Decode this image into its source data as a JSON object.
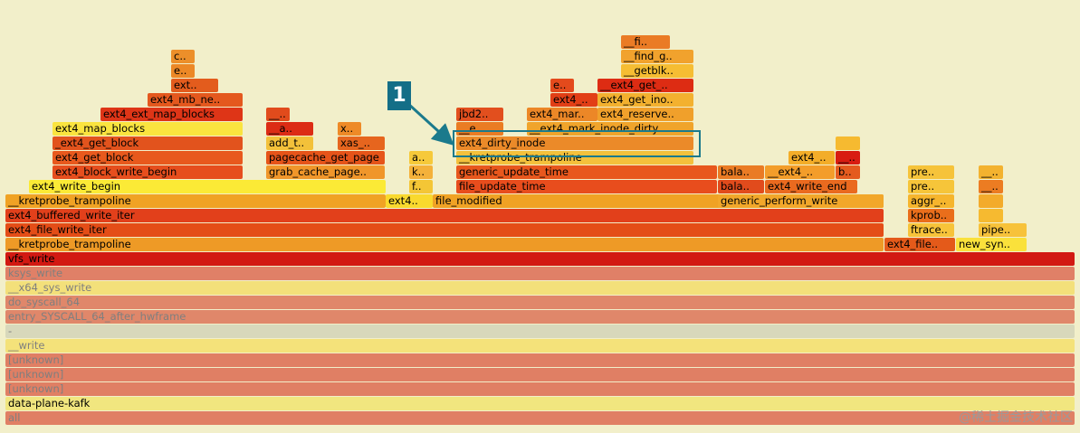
{
  "frames": [
    {
      "label": "all",
      "c": "#e07f64",
      "d": 1
    },
    {
      "label": "data-plane-kafk",
      "c": "#f1e67f"
    },
    {
      "label": "[unknown]",
      "c": "#e07f64",
      "d": 1
    },
    {
      "label": "[unknown]",
      "c": "#e07f64",
      "d": 1
    },
    {
      "label": "[unknown]",
      "c": "#e07f64",
      "d": 1
    },
    {
      "label": "__write",
      "c": "#f4e27a",
      "d": 1
    },
    {
      "label": "-",
      "c": "#d8d8bb",
      "d": 1
    },
    {
      "label": "entry_SYSCALL_64_after_hwframe",
      "c": "#e0876a",
      "d": 1
    },
    {
      "label": "do_syscall_64",
      "c": "#e0876a",
      "d": 1
    },
    {
      "label": "__x64_sys_write",
      "c": "#f3e07a",
      "d": 1
    },
    {
      "label": "ksys_write",
      "c": "#e08067",
      "d": 1
    },
    {
      "label": "vfs_write",
      "c": "#d21912"
    },
    {
      "label": "__kretprobe_trampoline",
      "c": "#ee9a26"
    },
    {
      "label": "ext4_file..",
      "c": "#e45a1a"
    },
    {
      "label": "new_syn..",
      "c": "#fae13b"
    },
    {
      "label": "ext4_file_write_iter",
      "c": "#e44d17"
    },
    {
      "label": "ftrace..",
      "c": "#f7c33a"
    },
    {
      "label": "pipe..",
      "c": "#f7c23a"
    },
    {
      "label": "ext4_buffered_write_iter",
      "c": "#e2401b"
    },
    {
      "label": "kprob..",
      "c": "#ea6e1b"
    },
    {
      "label": "",
      "c": "#f6ba30"
    },
    {
      "label": "__kretprobe_trampoline",
      "c": "#f0a224"
    },
    {
      "label": "ext4..",
      "c": "#f9d92e"
    },
    {
      "label": "file_modified",
      "c": "#f0a224"
    },
    {
      "label": "generic_perform_write",
      "c": "#f2a72a"
    },
    {
      "label": "aggr_..",
      "c": "#f6b52d"
    },
    {
      "label": "",
      "c": "#f3ab2b"
    },
    {
      "label": "ext4_write_begin",
      "c": "#fbea36"
    },
    {
      "label": "f..",
      "c": "#f4c636"
    },
    {
      "label": "file_update_time",
      "c": "#e84d1d"
    },
    {
      "label": "bala..",
      "c": "#e14b1c"
    },
    {
      "label": "ext4_write_end",
      "c": "#ea6a1f"
    },
    {
      "label": "pre..",
      "c": "#f6c53a"
    },
    {
      "label": "__..",
      "c": "#ec7c22"
    },
    {
      "label": "ext4_block_write_begin",
      "c": "#e64e1d"
    },
    {
      "label": "grab_cache_page..",
      "c": "#f0962a"
    },
    {
      "label": "k..",
      "c": "#f4b13a"
    },
    {
      "label": "generic_update_time",
      "c": "#e8571d"
    },
    {
      "label": "bala..",
      "c": "#ea7b24"
    },
    {
      "label": "__ext4_..",
      "c": "#f39d2a"
    },
    {
      "label": "b..",
      "c": "#e45b1f"
    },
    {
      "label": "pre..",
      "c": "#f6c33a"
    },
    {
      "label": "__..",
      "c": "#f3b22f"
    },
    {
      "label": "ext4_get_block",
      "c": "#e8591d"
    },
    {
      "label": "pagecache_get_page",
      "c": "#e65419"
    },
    {
      "label": "a..",
      "c": "#f6c93a"
    },
    {
      "label": "__kretprobe_trampoline",
      "c": "#f4c13c"
    },
    {
      "label": "ext4_..",
      "c": "#f3ad29"
    },
    {
      "label": "__..",
      "c": "#d81c11"
    },
    {
      "label": "_ext4_get_block",
      "c": "#e2531d"
    },
    {
      "label": "add_t..",
      "c": "#f3c13a"
    },
    {
      "label": "xas_..",
      "c": "#e6651e"
    },
    {
      "label": "ext4_dirty_inode",
      "c": "#eb8a29"
    },
    {
      "label": "",
      "c": "#f6ba30"
    },
    {
      "label": "ext4_map_blocks",
      "c": "#fae43f"
    },
    {
      "label": "__a..",
      "c": "#dc2c15"
    },
    {
      "label": "x..",
      "c": "#ee8a27"
    },
    {
      "label": "__e..",
      "c": "#ea7c23"
    },
    {
      "label": "__ext4_mark_inode_dirty",
      "c": "#f0a42b"
    },
    {
      "label": "ext4_ext_map_blocks",
      "c": "#de3517"
    },
    {
      "label": "__..",
      "c": "#e14b1c"
    },
    {
      "label": "jbd2..",
      "c": "#e24f1e"
    },
    {
      "label": "ext4_mar..",
      "c": "#ec8727"
    },
    {
      "label": "ext4_reserve..",
      "c": "#f0a02b"
    },
    {
      "label": "ext4_mb_ne..",
      "c": "#e4581e"
    },
    {
      "label": "ext4_..",
      "c": "#e23f16"
    },
    {
      "label": "ext4_get_ino..",
      "c": "#f3b12f"
    },
    {
      "label": "ext..",
      "c": "#e35c1d"
    },
    {
      "label": "e..",
      "c": "#e44a1c"
    },
    {
      "label": "__ext4_get_..",
      "c": "#dd2c13"
    },
    {
      "label": "e..",
      "c": "#ec8826"
    },
    {
      "label": "__getblk..",
      "c": "#f6bd33"
    },
    {
      "label": "c..",
      "c": "#ec8f2a"
    },
    {
      "label": "__find_g..",
      "c": "#f1a22d"
    },
    {
      "label": "__fi..",
      "c": "#ea7b25"
    }
  ],
  "annotation": {
    "number": "1",
    "target": "ext4_dirty_inode"
  },
  "watermark": "@稀土掘金技术社区"
}
